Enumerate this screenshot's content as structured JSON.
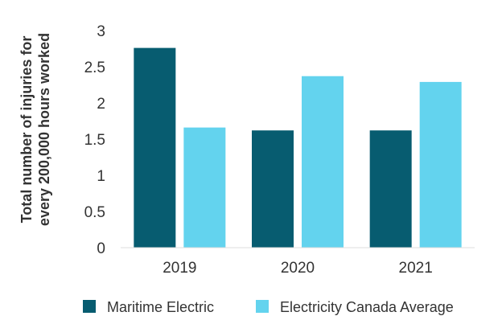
{
  "chart_data": {
    "type": "bar",
    "categories": [
      "2019",
      "2020",
      "2021"
    ],
    "series": [
      {
        "name": "Maritime Electric",
        "values": [
          2.76,
          1.62,
          1.62
        ],
        "color": "#075c70"
      },
      {
        "name": "Electricity Canada Average",
        "values": [
          1.66,
          2.37,
          2.29
        ],
        "color": "#63d3ee"
      }
    ],
    "ylabel_lines": [
      "Total number of injuries for",
      "every 200,000 hours worked"
    ],
    "yticks": [
      "0",
      "0.5",
      "1",
      "1.5",
      "2",
      "2.5",
      "3"
    ],
    "ylim": [
      0,
      3
    ],
    "grid": false,
    "legend_position": "bottom"
  }
}
